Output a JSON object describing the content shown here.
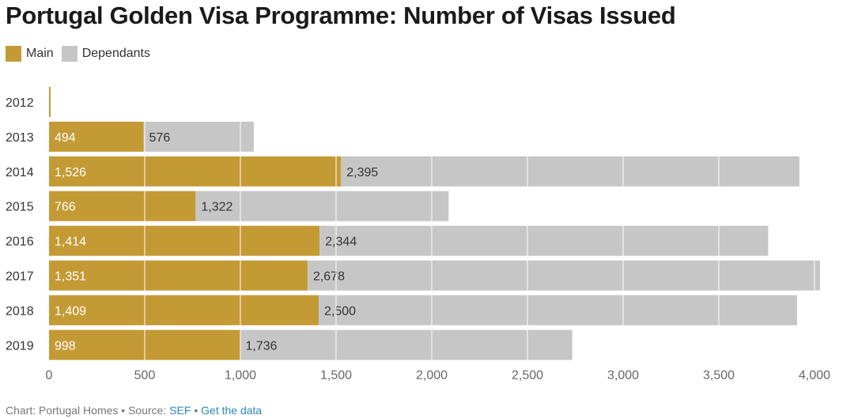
{
  "chart_data": {
    "type": "bar",
    "orientation": "horizontal",
    "stacked": true,
    "title": "Portugal Golden Visa Programme: Number of Visas Issued",
    "categories": [
      "2012",
      "2013",
      "2014",
      "2015",
      "2016",
      "2017",
      "2018",
      "2019"
    ],
    "series": [
      {
        "name": "Main",
        "color": "#c49a35",
        "values": [
          2,
          494,
          1526,
          766,
          1414,
          1351,
          1409,
          998
        ],
        "labels": [
          "",
          "494",
          "1,526",
          "766",
          "1,414",
          "1,351",
          "1,409",
          "998"
        ]
      },
      {
        "name": "Dependants",
        "color": "#c6c6c6",
        "values": [
          0,
          576,
          2395,
          1322,
          2344,
          2678,
          2500,
          1736
        ],
        "labels": [
          "",
          "576",
          "2,395",
          "1,322",
          "2,344",
          "2,678",
          "2,500",
          "1,736"
        ]
      }
    ],
    "xlim": [
      0,
      4000
    ],
    "xticks": [
      0,
      500,
      1000,
      1500,
      2000,
      2500,
      3000,
      3500,
      4000
    ],
    "xtick_labels": [
      "0",
      "500",
      "1,000",
      "1,500",
      "2,000",
      "2,500",
      "3,000",
      "3,500",
      "4,000"
    ],
    "xlabel": "",
    "ylabel": "",
    "grid": true,
    "legend": "top-left"
  },
  "footer": {
    "prefix": "Chart: Portugal Homes • Source: ",
    "source_link": "SEF",
    "separator": " • ",
    "data_link": "Get the data"
  }
}
